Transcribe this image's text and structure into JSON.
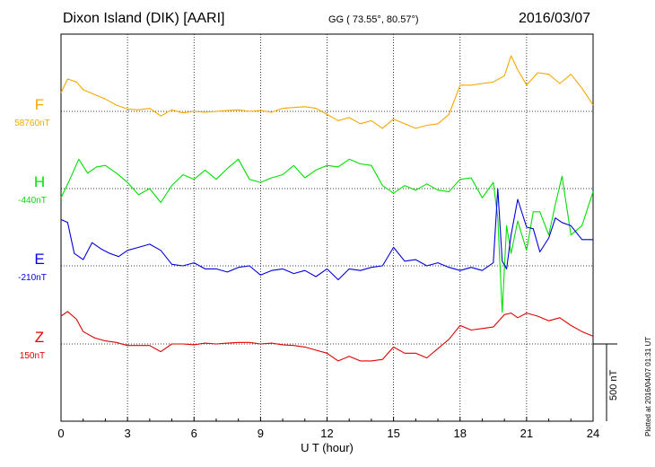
{
  "header": {
    "station": "Dixon Island (DIK)  [AARI]",
    "coords": "GG ( 73.55°,  80.57°)",
    "date": "2016/03/07"
  },
  "footer": {
    "plotted": "Plotted at 2016/04/07 01:31  UT",
    "scale": "500 nT"
  },
  "chart_data": {
    "type": "line",
    "xlabel": "U T (hour)",
    "xlim": [
      0,
      24
    ],
    "xticks": [
      "0",
      "3",
      "6",
      "9",
      "12",
      "15",
      "18",
      "21",
      "24"
    ],
    "grid": true,
    "unit_scale_nT": 500,
    "series": [
      {
        "name": "F",
        "baseline": "58760nT",
        "color": "#f5a800",
        "x": [
          0,
          0.3,
          0.7,
          1.0,
          1.5,
          2.0,
          2.5,
          3.0,
          3.5,
          4.0,
          4.5,
          5.0,
          5.5,
          6.0,
          6.5,
          7.0,
          7.5,
          8.0,
          8.5,
          9.0,
          9.5,
          10.0,
          10.5,
          11.0,
          11.5,
          12.0,
          12.5,
          13.0,
          13.5,
          14.0,
          14.5,
          15.0,
          15.5,
          16.0,
          16.5,
          17.0,
          17.5,
          18.0,
          18.5,
          19.0,
          19.5,
          20.0,
          20.3,
          20.6,
          21.0,
          21.5,
          22.0,
          22.5,
          23.0,
          23.5,
          24.0
        ],
        "y": [
          120,
          210,
          190,
          140,
          110,
          80,
          40,
          15,
          10,
          20,
          -30,
          10,
          -10,
          0,
          -5,
          0,
          5,
          10,
          0,
          5,
          -5,
          20,
          25,
          30,
          20,
          -20,
          -60,
          -40,
          -80,
          -60,
          -110,
          -50,
          -80,
          -110,
          -90,
          -80,
          -20,
          170,
          170,
          180,
          190,
          230,
          360,
          270,
          170,
          250,
          240,
          180,
          240,
          150,
          40
        ]
      },
      {
        "name": "H",
        "baseline": "-440nT",
        "color": "#00e000",
        "x": [
          0,
          0.4,
          0.8,
          1.2,
          1.6,
          2.0,
          2.5,
          3.0,
          3.5,
          4.0,
          4.5,
          5.0,
          5.5,
          6.0,
          6.5,
          7.0,
          7.5,
          8.0,
          8.5,
          9.0,
          9.5,
          10.0,
          10.5,
          11.0,
          11.5,
          12.0,
          12.5,
          13.0,
          13.5,
          14.0,
          14.5,
          15.0,
          15.5,
          16.0,
          16.5,
          17.0,
          17.5,
          18.0,
          18.5,
          19.0,
          19.5,
          19.7,
          19.9,
          20.1,
          20.3,
          20.6,
          21.0,
          21.3,
          21.6,
          22.0,
          22.3,
          22.6,
          23.0,
          23.5,
          24.0
        ],
        "y": [
          -60,
          60,
          190,
          100,
          140,
          150,
          100,
          40,
          -40,
          0,
          -90,
          20,
          90,
          60,
          120,
          60,
          130,
          190,
          60,
          40,
          70,
          90,
          150,
          70,
          120,
          150,
          140,
          190,
          160,
          150,
          20,
          -30,
          20,
          -10,
          30,
          -10,
          -20,
          60,
          70,
          -60,
          40,
          -190,
          -800,
          -240,
          -420,
          -210,
          -400,
          -150,
          -150,
          -300,
          -100,
          80,
          -300,
          -240,
          -20
        ]
      },
      {
        "name": "E",
        "baseline": "-210nT",
        "color": "#0000e0",
        "x": [
          0,
          0.3,
          0.6,
          1.0,
          1.4,
          1.8,
          2.2,
          2.6,
          3.0,
          3.5,
          4.0,
          4.5,
          5.0,
          5.5,
          6.0,
          6.5,
          7.0,
          7.5,
          8.0,
          8.5,
          9.0,
          9.5,
          10.0,
          10.5,
          11.0,
          11.5,
          12.0,
          12.5,
          13.0,
          13.5,
          14.0,
          14.5,
          15.0,
          15.5,
          16.0,
          16.5,
          17.0,
          17.5,
          18.0,
          18.5,
          19.0,
          19.5,
          19.7,
          19.9,
          20.1,
          20.3,
          20.6,
          21.0,
          21.3,
          21.6,
          22.0,
          22.3,
          22.6,
          23.0,
          23.5,
          24.0
        ],
        "y": [
          300,
          280,
          80,
          40,
          150,
          110,
          80,
          60,
          100,
          120,
          140,
          100,
          10,
          0,
          20,
          -20,
          -20,
          -40,
          -10,
          0,
          -60,
          -30,
          -20,
          -50,
          -30,
          -70,
          -20,
          -90,
          -20,
          -30,
          -10,
          0,
          120,
          30,
          40,
          0,
          20,
          -10,
          -30,
          -10,
          -30,
          20,
          500,
          30,
          -20,
          200,
          430,
          250,
          240,
          90,
          180,
          310,
          280,
          260,
          170,
          170
        ]
      },
      {
        "name": "Z",
        "baseline": "150nT",
        "color": "#e00000",
        "x": [
          0,
          0.3,
          0.7,
          1.0,
          1.5,
          2.0,
          2.5,
          3.0,
          3.5,
          4.0,
          4.5,
          5.0,
          5.5,
          6.0,
          6.5,
          7.0,
          7.5,
          8.0,
          8.5,
          9.0,
          9.5,
          10.0,
          10.5,
          11.0,
          11.5,
          12.0,
          12.5,
          13.0,
          13.5,
          14.0,
          14.5,
          15.0,
          15.5,
          16.0,
          16.5,
          17.0,
          17.5,
          18.0,
          18.5,
          19.0,
          19.5,
          20.0,
          20.3,
          20.6,
          21.0,
          21.5,
          22.0,
          22.5,
          23.0,
          23.5,
          24.0
        ],
        "y": [
          180,
          210,
          160,
          80,
          40,
          20,
          10,
          -10,
          -10,
          -10,
          -50,
          0,
          0,
          -5,
          5,
          0,
          5,
          10,
          10,
          0,
          5,
          -5,
          -10,
          -20,
          -40,
          -60,
          -110,
          -80,
          -110,
          -110,
          -100,
          -20,
          -60,
          -60,
          -90,
          -30,
          30,
          120,
          90,
          100,
          110,
          190,
          200,
          170,
          200,
          180,
          150,
          170,
          120,
          80,
          50
        ]
      }
    ]
  }
}
